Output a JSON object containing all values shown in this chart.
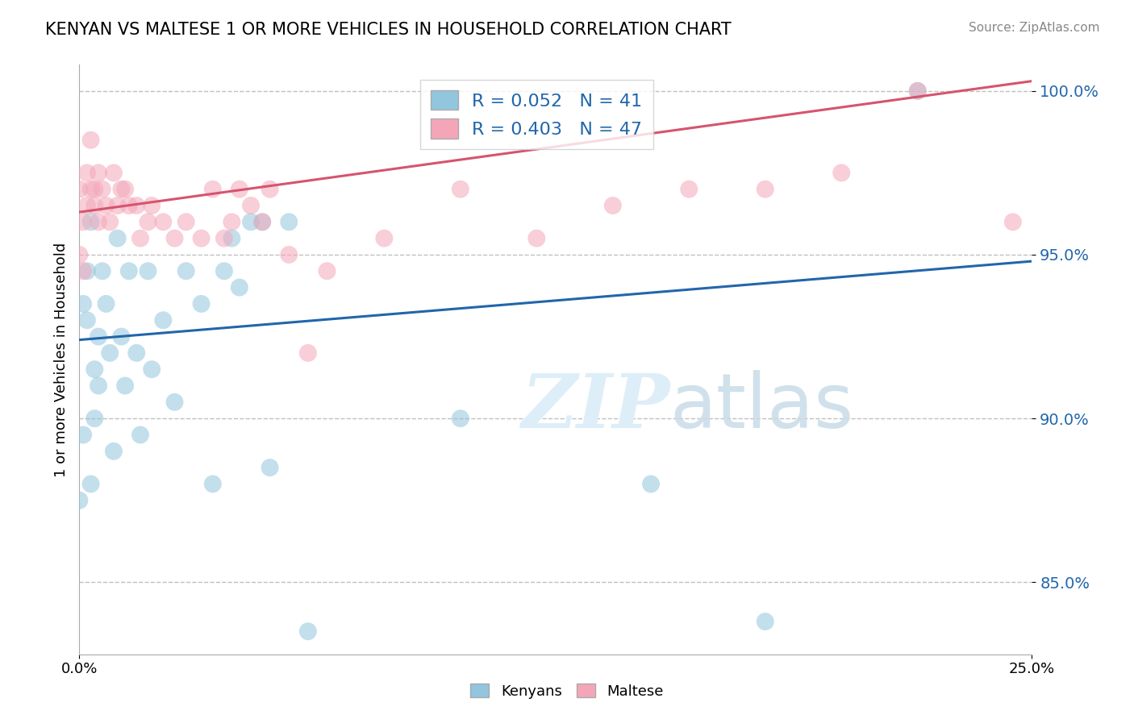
{
  "title": "KENYAN VS MALTESE 1 OR MORE VEHICLES IN HOUSEHOLD CORRELATION CHART",
  "source": "Source: ZipAtlas.com",
  "ylabel": "1 or more Vehicles in Household",
  "xmin": 0.0,
  "xmax": 0.25,
  "ymin": 0.828,
  "ymax": 1.008,
  "yticks": [
    0.85,
    0.9,
    0.95,
    1.0
  ],
  "ytick_labels": [
    "85.0%",
    "90.0%",
    "95.0%",
    "100.0%"
  ],
  "xtick_positions": [
    0.0,
    0.25
  ],
  "xtick_labels": [
    "0.0%",
    "25.0%"
  ],
  "r_kenyan": 0.052,
  "n_kenyan": 41,
  "r_maltese": 0.403,
  "n_maltese": 47,
  "color_kenyan": "#92c5de",
  "color_maltese": "#f4a6b8",
  "line_color_kenyan": "#2166ac",
  "line_color_maltese": "#d6546e",
  "watermark_color": "#ddeef8",
  "label_kenyans": "Kenyans",
  "label_maltese": "Maltese",
  "kenyan_x": [
    0.0,
    0.001,
    0.001,
    0.002,
    0.002,
    0.003,
    0.003,
    0.004,
    0.004,
    0.005,
    0.005,
    0.006,
    0.007,
    0.008,
    0.009,
    0.01,
    0.011,
    0.012,
    0.013,
    0.015,
    0.016,
    0.018,
    0.019,
    0.022,
    0.025,
    0.028,
    0.032,
    0.035,
    0.038,
    0.04,
    0.042,
    0.045,
    0.048,
    0.05,
    0.055,
    0.06,
    0.065,
    0.1,
    0.15,
    0.18,
    0.22
  ],
  "kenyan_y": [
    0.875,
    0.935,
    0.895,
    0.93,
    0.945,
    0.96,
    0.88,
    0.915,
    0.9,
    0.925,
    0.91,
    0.945,
    0.935,
    0.92,
    0.89,
    0.955,
    0.925,
    0.91,
    0.945,
    0.92,
    0.895,
    0.945,
    0.915,
    0.93,
    0.905,
    0.945,
    0.935,
    0.88,
    0.945,
    0.955,
    0.94,
    0.96,
    0.96,
    0.885,
    0.96,
    0.835,
    0.825,
    0.9,
    0.88,
    0.838,
    1.0
  ],
  "maltese_x": [
    0.0,
    0.0,
    0.001,
    0.001,
    0.002,
    0.002,
    0.003,
    0.003,
    0.004,
    0.004,
    0.005,
    0.005,
    0.006,
    0.007,
    0.008,
    0.009,
    0.01,
    0.011,
    0.012,
    0.013,
    0.015,
    0.016,
    0.018,
    0.019,
    0.022,
    0.025,
    0.028,
    0.032,
    0.035,
    0.038,
    0.04,
    0.042,
    0.045,
    0.048,
    0.05,
    0.055,
    0.06,
    0.065,
    0.08,
    0.1,
    0.12,
    0.14,
    0.16,
    0.18,
    0.2,
    0.22,
    0.245
  ],
  "maltese_y": [
    0.97,
    0.95,
    0.96,
    0.945,
    0.975,
    0.965,
    0.985,
    0.97,
    0.97,
    0.965,
    0.975,
    0.96,
    0.97,
    0.965,
    0.96,
    0.975,
    0.965,
    0.97,
    0.97,
    0.965,
    0.965,
    0.955,
    0.96,
    0.965,
    0.96,
    0.955,
    0.96,
    0.955,
    0.97,
    0.955,
    0.96,
    0.97,
    0.965,
    0.96,
    0.97,
    0.95,
    0.92,
    0.945,
    0.955,
    0.97,
    0.955,
    0.965,
    0.97,
    0.97,
    0.975,
    1.0,
    0.96
  ],
  "kenyan_line_x": [
    0.0,
    0.25
  ],
  "kenyan_line_y": [
    0.924,
    0.948
  ],
  "maltese_line_x": [
    0.0,
    0.25
  ],
  "maltese_line_y": [
    0.963,
    1.003
  ]
}
